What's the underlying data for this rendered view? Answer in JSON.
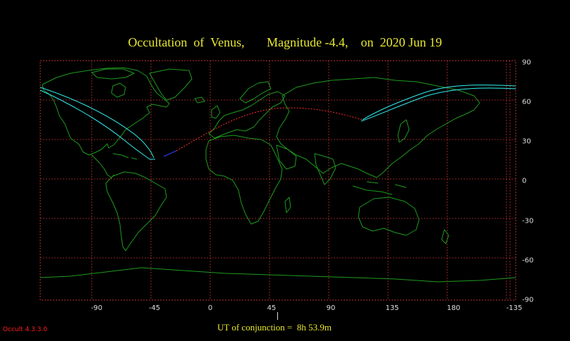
{
  "title": "Occultation  of  Venus,       Magnitude -4.4,    on  2020 Jun 19",
  "colors": {
    "background": "#000000",
    "grid": "#c03030",
    "coastline": "#1f9a1f",
    "path": "#30f0f0",
    "daylight_track": "#ff3030",
    "daylight_track_blue": "#3040ff",
    "title": "#e8e830",
    "ticks": "#dddddd",
    "version": "#ff2020"
  },
  "axes": {
    "longitude_ticks": [
      "-90",
      "-45",
      "0",
      "45",
      "90",
      "135",
      "180",
      "-135"
    ],
    "latitude_ticks": [
      "90",
      "60",
      "30",
      "0",
      "-30",
      "-60",
      "-90"
    ]
  },
  "conjunction": {
    "label": "UT of conjunction =  8h 53.9m"
  },
  "version": "Occult 4.3.3.0"
}
